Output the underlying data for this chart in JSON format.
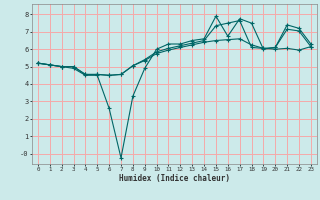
{
  "background_color": "#cceaea",
  "grid_color": "#f5aaaa",
  "line_color": "#006666",
  "xlabel": "Humidex (Indice chaleur)",
  "x_ticks": [
    0,
    1,
    2,
    3,
    4,
    5,
    6,
    7,
    8,
    9,
    10,
    11,
    12,
    13,
    14,
    15,
    16,
    17,
    18,
    19,
    20,
    21,
    22,
    23
  ],
  "ylim": [
    -0.6,
    8.6
  ],
  "xlim": [
    -0.5,
    23.5
  ],
  "y_ticks": [
    0,
    1,
    2,
    3,
    4,
    5,
    6,
    7,
    8
  ],
  "y_tick_labels": [
    "-0",
    "1",
    "2",
    "3",
    "4",
    "5",
    "6",
    "7",
    "8"
  ],
  "curve1_x": [
    0,
    1,
    2,
    3,
    4,
    5,
    6,
    7,
    8,
    9,
    10,
    11,
    12,
    13,
    14,
    15,
    16,
    17,
    18,
    19,
    20,
    21,
    22,
    23
  ],
  "curve1_y": [
    5.2,
    5.1,
    5.0,
    4.9,
    4.5,
    4.5,
    2.6,
    -0.25,
    3.3,
    4.9,
    6.0,
    6.3,
    6.3,
    6.5,
    6.6,
    7.9,
    6.75,
    7.75,
    7.5,
    6.0,
    6.1,
    7.4,
    7.2,
    6.3
  ],
  "curve2_x": [
    0,
    1,
    2,
    3,
    4,
    5,
    6,
    7,
    8,
    9,
    10,
    11,
    12,
    13,
    14,
    15,
    16,
    17,
    18,
    19,
    20,
    21,
    22,
    23
  ],
  "curve2_y": [
    5.2,
    5.1,
    5.0,
    5.0,
    4.55,
    4.55,
    4.5,
    4.55,
    5.05,
    5.4,
    5.85,
    6.05,
    6.2,
    6.35,
    6.5,
    7.35,
    7.5,
    7.65,
    6.1,
    6.05,
    6.1,
    7.15,
    7.05,
    6.15
  ],
  "curve3_x": [
    0,
    1,
    2,
    3,
    4,
    5,
    6,
    7,
    8,
    9,
    10,
    11,
    12,
    13,
    14,
    15,
    16,
    17,
    18,
    19,
    20,
    21,
    22,
    23
  ],
  "curve3_y": [
    5.2,
    5.1,
    5.0,
    5.0,
    4.55,
    4.55,
    4.5,
    4.55,
    5.05,
    5.35,
    5.75,
    5.95,
    6.1,
    6.25,
    6.4,
    6.5,
    6.55,
    6.6,
    6.25,
    6.05,
    6.0,
    6.05,
    5.95,
    6.15
  ]
}
